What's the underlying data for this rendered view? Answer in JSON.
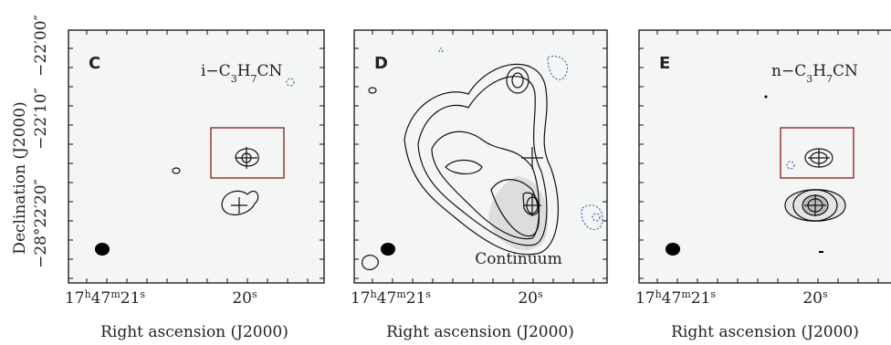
{
  "y_axis_label": "Declination (J2000)",
  "x_axis_label": "Right ascension (J2000)",
  "y_tick_labels": [
    "−22′00″",
    "−22′10″",
    "−28°22′20″"
  ],
  "ra_tick_labels": [
    {
      "parts": [
        "17",
        "h",
        "47",
        "m",
        "21",
        "s"
      ]
    },
    {
      "parts": [
        "20",
        "s"
      ]
    }
  ],
  "panels": [
    {
      "letter": "C",
      "label": {
        "parts": [
          "i−C",
          "3",
          "H",
          "7",
          "CN"
        ]
      }
    },
    {
      "letter": "D",
      "label": {
        "parts": [
          "Continuum"
        ]
      }
    },
    {
      "letter": "E",
      "label": {
        "parts": [
          "n−C",
          "3",
          "H",
          "7",
          "CN"
        ]
      }
    }
  ]
}
